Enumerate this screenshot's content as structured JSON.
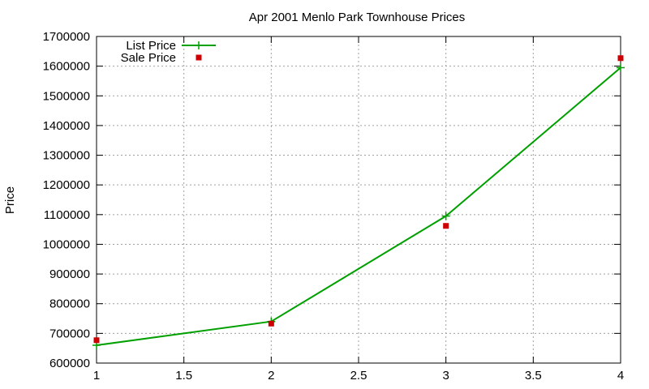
{
  "chart_data": {
    "type": "line",
    "title": "Apr 2001 Menlo Park Townhouse Prices",
    "xlabel": "",
    "ylabel": "Price",
    "xlim": [
      1,
      4
    ],
    "ylim": [
      600000,
      1700000
    ],
    "x_ticks": [
      "1",
      "1.5",
      "2",
      "2.5",
      "3",
      "3.5",
      "4"
    ],
    "y_ticks": [
      "600000",
      "700000",
      "800000",
      "900000",
      "1000000",
      "1100000",
      "1200000",
      "1300000",
      "1400000",
      "1500000",
      "1600000",
      "1700000"
    ],
    "grid": true,
    "legend_position": "top-left",
    "series": [
      {
        "name": "List Price",
        "style": "line+points",
        "marker": "plus",
        "color": "#00a000",
        "x": [
          1,
          2,
          3,
          4
        ],
        "y": [
          660000,
          740000,
          1095000,
          1595000
        ]
      },
      {
        "name": "Sale Price",
        "style": "points",
        "marker": "square",
        "color": "#cc0000",
        "x": [
          1,
          2,
          3,
          4
        ],
        "y": [
          677000,
          733000,
          1062000,
          1627000
        ]
      }
    ]
  }
}
